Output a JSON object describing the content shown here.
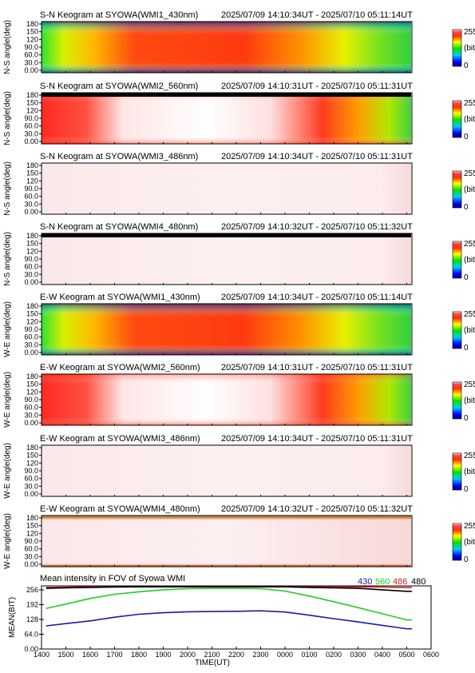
{
  "panels": [
    {
      "title": "S-N Keogram at SYOWA(WMI1_430nm)",
      "range": "2025/07/09 14:10:34UT - 2025/07/10 05:11:14UT",
      "ylabel": "N-S angle(deg)",
      "intensity": "medium"
    },
    {
      "title": "S-N Keogram at SYOWA(WMI2_560nm)",
      "range": "2025/07/09 14:10:31UT - 2025/07/10 05:11:31UT",
      "ylabel": "N-S angle(deg)",
      "intensity": "high"
    },
    {
      "title": "S-N Keogram at SYOWA(WMI3_486nm)",
      "range": "2025/07/09 14:10:34UT - 2025/07/10 05:11:31UT",
      "ylabel": "N-S angle(deg)",
      "intensity": "saturated"
    },
    {
      "title": "S-N Keogram at SYOWA(WMI4_480nm)",
      "range": "2025/07/09 14:10:32UT - 2025/07/10 05:11:32UT",
      "ylabel": "N-S angle(deg)",
      "intensity": "saturated"
    },
    {
      "title": "E-W Keogram at SYOWA(WMI1_430nm)",
      "range": "2025/07/09 14:10:34UT - 2025/07/10 05:11:14UT",
      "ylabel": "W-E angle(deg)",
      "intensity": "medium"
    },
    {
      "title": "E-W Keogram at SYOWA(WMI2_560nm)",
      "range": "2025/07/09 14:10:31UT - 2025/07/10 05:11:31UT",
      "ylabel": "W-E angle(deg)",
      "intensity": "high"
    },
    {
      "title": "E-W Keogram at SYOWA(WMI3_486nm)",
      "range": "2025/07/09 14:10:34UT - 2025/07/10 05:11:31UT",
      "ylabel": "W-E angle(deg)",
      "intensity": "saturated"
    },
    {
      "title": "E-W Keogram at SYOWA(WMI4_480nm)",
      "range": "2025/07/09 14:10:32UT - 2025/07/10 05:11:32UT",
      "ylabel": "W-E angle(deg)",
      "intensity": "saturated-edge"
    }
  ],
  "panel_yticks": [
    "180",
    "150",
    "120",
    "90.0",
    "60.0",
    "30.0",
    "0.00"
  ],
  "colorbar": {
    "max_label": "255",
    "unit_label": "(bit)",
    "min_label": "0"
  },
  "chart_data": {
    "type": "line",
    "title": "Mean intensity in FOV of Syowa WMI",
    "xlabel": "TIME(UT)",
    "ylabel": "MEAN(BIT)",
    "ylim": [
      0,
      256
    ],
    "xlim": [
      14,
      30
    ],
    "x_ticks": [
      "1400",
      "1500",
      "1600",
      "1700",
      "1800",
      "1900",
      "2000",
      "2100",
      "2200",
      "2300",
      "0000",
      "0100",
      "0200",
      "0300",
      "0400",
      "0500",
      "0600"
    ],
    "y_ticks": [
      "256",
      "192",
      "128",
      "64.0",
      "0.00"
    ],
    "legend": {
      "placement": "top-right"
    },
    "x": [
      14.2,
      15,
      16,
      17,
      18,
      19,
      20,
      21,
      22,
      23,
      24,
      25,
      26,
      27,
      28,
      29,
      29.2
    ],
    "series": [
      {
        "name": "430",
        "color": "#1a1aa6",
        "values": [
          94,
          103,
          114,
          129,
          141,
          147,
          151,
          152,
          153,
          155,
          150,
          137,
          123,
          110,
          96,
          82,
          82
        ]
      },
      {
        "name": "560",
        "color": "#22cc22",
        "values": [
          165,
          182,
          205,
          222,
          232,
          240,
          245,
          246,
          246,
          245,
          235,
          215,
          192,
          168,
          143,
          118,
          118
        ]
      },
      {
        "name": "486",
        "color": "#cc2222",
        "values": [
          250,
          251,
          252,
          252,
          252,
          253,
          253,
          253,
          253,
          253,
          253,
          252,
          252,
          252,
          251,
          250,
          250
        ]
      },
      {
        "name": "480",
        "color": "#000000",
        "values": [
          246,
          248,
          250,
          251,
          252,
          252,
          252,
          252,
          252,
          252,
          252,
          250,
          248,
          246,
          240,
          234,
          234
        ]
      }
    ]
  }
}
